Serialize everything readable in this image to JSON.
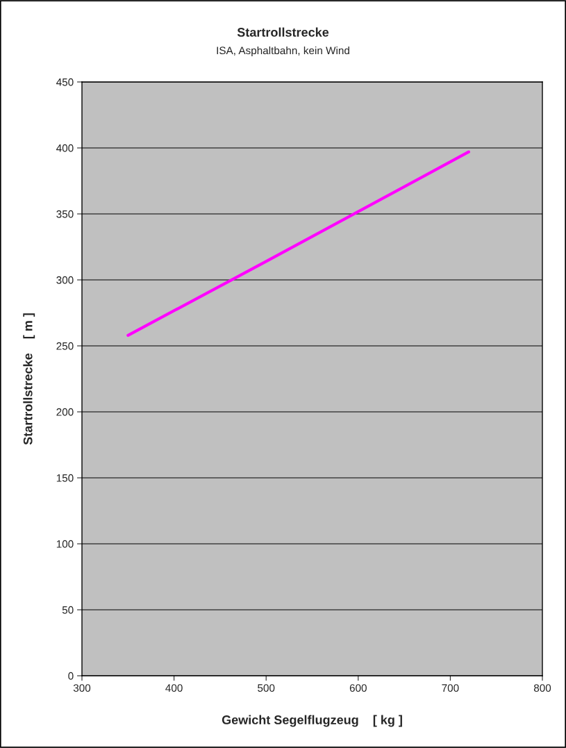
{
  "chart_data": {
    "type": "line",
    "title": "Startrollstrecke",
    "subtitle": "ISA, Asphaltbahn, kein Wind",
    "xlabel": "Gewicht Segelflugzeug    [ kg ]",
    "ylabel": "Startrollstrecke    [ m ]",
    "series": [
      {
        "color": "#ff00ff",
        "x": [
          350,
          500,
          720
        ],
        "values": [
          258,
          314,
          397
        ]
      }
    ],
    "xlim": [
      300,
      800
    ],
    "xticks": [
      300,
      400,
      500,
      600,
      700,
      800
    ],
    "ylim": [
      0,
      450
    ],
    "yticks": [
      0,
      50,
      100,
      150,
      200,
      250,
      300,
      350,
      400,
      450
    ],
    "grid": "y",
    "marker": "none",
    "line_style": "solid"
  }
}
